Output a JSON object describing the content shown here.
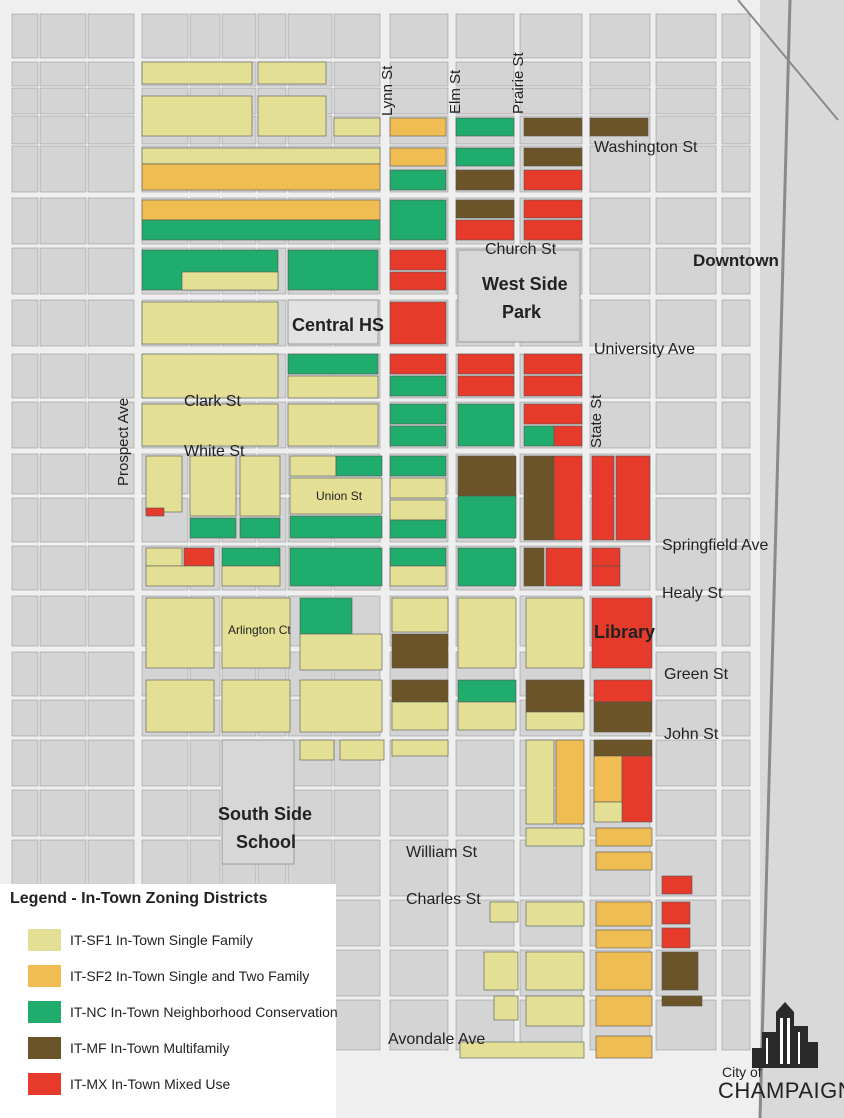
{
  "colors": {
    "sf1": "#e3df94",
    "sf2": "#f0bd52",
    "nc": "#1fac6c",
    "mf": "#6b5427",
    "mx": "#e63a2b",
    "block": "#d4d4d4",
    "street": "#efefef",
    "text": "#222222"
  },
  "labels": {
    "lynn_st": "Lynn St",
    "elm_st": "Elm St",
    "prairie_st": "Prairie St",
    "washington_st": "Washington St",
    "church_st": "Church St",
    "downtown": "Downtown",
    "west_side_park_1": "West Side",
    "west_side_park_2": "Park",
    "central_hs": "Central HS",
    "university_ave": "University Ave",
    "clark_st": "Clark St",
    "prospect_ave": "Prospect Ave",
    "white_st": "White St",
    "state_st": "State St",
    "union_st": "Union St",
    "springfield_ave": "Springfield Ave",
    "healy_st": "Healy St",
    "arlington_ct": "Arlington Ct",
    "library": "Library",
    "green_st": "Green St",
    "john_st": "John St",
    "south_side_1": "South Side",
    "south_side_2": "School",
    "william_st": "William St",
    "charles_st": "Charles St",
    "avondale_ave": "Avondale Ave"
  },
  "legend": {
    "title": "Legend - In-Town Zoning Districts",
    "items": [
      {
        "zone": "sf1",
        "label": "IT-SF1 In-Town Single Family"
      },
      {
        "zone": "sf2",
        "label": "IT-SF2 In-Town Single and Two Family"
      },
      {
        "zone": "nc",
        "label": "IT-NC In-Town Neighborhood Conservation"
      },
      {
        "zone": "mf",
        "label": "IT-MF In-Town Multifamily"
      },
      {
        "zone": "mx",
        "label": "IT-MX In-Town Mixed Use"
      }
    ]
  },
  "logo": {
    "city": "City of",
    "name": "CHAMPAIGN"
  }
}
